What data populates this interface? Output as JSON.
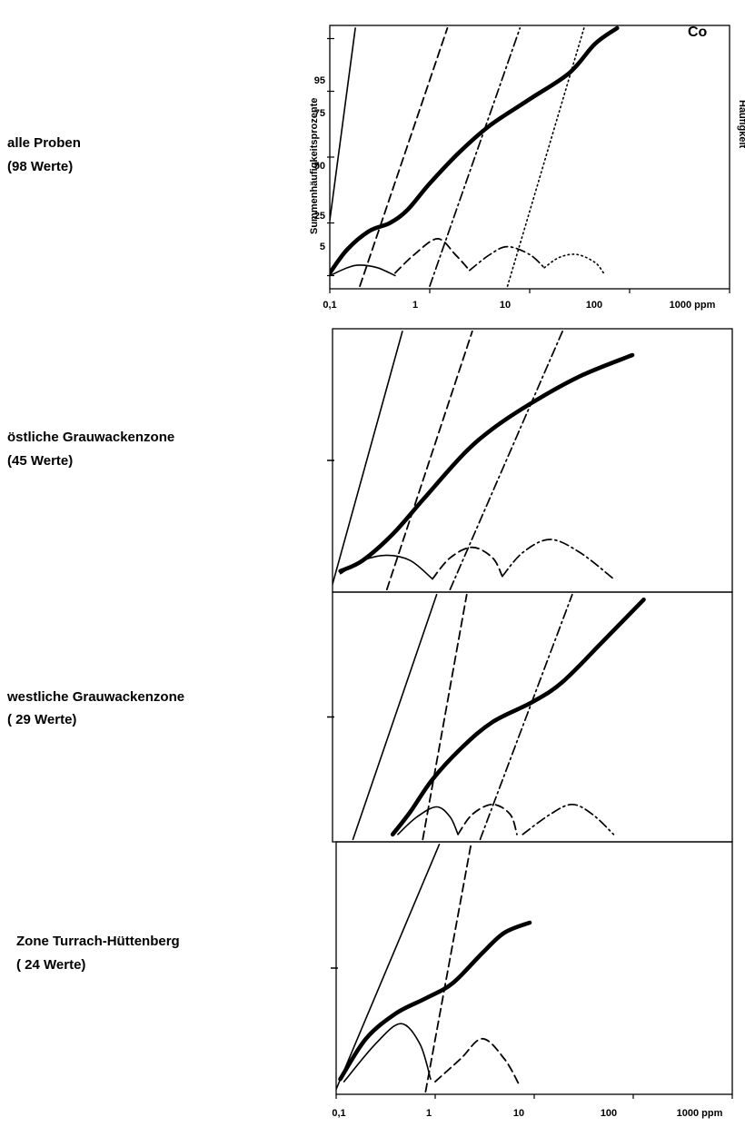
{
  "element": "Co",
  "y_axis_label": "Summenhäufigkeitsprozente",
  "y2_axis_label": "Häufigkeit",
  "x_axis": {
    "ticks": [
      "0,1",
      "1",
      "10",
      "100",
      "1000 ppm"
    ],
    "scale": "log",
    "range_ppm": [
      0.1,
      1000
    ]
  },
  "y_axis": {
    "ticks": [
      "5",
      "25",
      "50",
      "75",
      "95"
    ]
  },
  "panels": [
    {
      "label_line1": "alle Proben",
      "label_line2": "(98 Werte)"
    },
    {
      "label_line1": "östliche Grauwackenzone",
      "label_line2": "(45 Werte)"
    },
    {
      "label_line1": "westliche Grauwackenzone",
      "label_line2": "( 29 Werte)"
    },
    {
      "label_line1": "Zone Turrach-Hüttenberg",
      "label_line2": "( 24 Werte)"
    }
  ],
  "chart_data": [
    {
      "type": "line",
      "x_scale": "log",
      "xlim": [
        0.1,
        1000
      ],
      "series": [
        {
          "style": "thick",
          "x": [
            0.1,
            0.15,
            0.25,
            0.4,
            0.6,
            1,
            2,
            4,
            10,
            25,
            45,
            75
          ],
          "y": [
            6,
            15,
            22,
            25,
            30,
            40,
            52,
            62,
            72,
            82,
            93,
            99
          ]
        },
        {
          "style": "solid",
          "x": [
            0.1,
            0.18
          ],
          "y": [
            26,
            99
          ]
        },
        {
          "style": "dashed",
          "x": [
            0.2,
            1.5
          ],
          "y": [
            1,
            99
          ]
        },
        {
          "style": "dash-dot",
          "x": [
            1,
            8
          ],
          "y": [
            1,
            99
          ]
        },
        {
          "style": "dotted",
          "x": [
            6,
            35
          ],
          "y": [
            1,
            99
          ]
        },
        {
          "style": "solid",
          "x": [
            0.1,
            0.15,
            0.2,
            0.3,
            0.45
          ],
          "y": [
            5,
            8,
            9,
            8,
            5
          ]
        },
        {
          "style": "dashed",
          "x": [
            0.45,
            0.7,
            1.2,
            1.8,
            2.5
          ],
          "y": [
            6,
            13,
            19,
            13,
            7
          ]
        },
        {
          "style": "dash-dot",
          "x": [
            2.5,
            4,
            6,
            10,
            14
          ],
          "y": [
            7,
            13,
            16,
            13,
            8
          ]
        },
        {
          "style": "dotted",
          "x": [
            14,
            20,
            30,
            45,
            55
          ],
          "y": [
            8,
            12,
            13,
            10,
            6
          ]
        }
      ]
    },
    {
      "type": "line",
      "x_scale": "log",
      "xlim": [
        0.1,
        1000
      ],
      "series": [
        {
          "style": "thick",
          "x": [
            0.12,
            0.2,
            0.4,
            0.8,
            2,
            4,
            10,
            30,
            100
          ],
          "y": [
            8,
            12,
            22,
            35,
            52,
            62,
            72,
            82,
            90
          ]
        },
        {
          "style": "solid",
          "x": [
            0.1,
            0.5
          ],
          "y": [
            3,
            99
          ]
        },
        {
          "style": "dashed",
          "x": [
            0.35,
            2.5
          ],
          "y": [
            1,
            99
          ]
        },
        {
          "style": "dash-dot",
          "x": [
            1.5,
            20
          ],
          "y": [
            1,
            99
          ]
        },
        {
          "style": "solid",
          "x": [
            0.12,
            0.2,
            0.35,
            0.6,
            1
          ],
          "y": [
            7,
            12,
            14,
            12,
            5
          ]
        },
        {
          "style": "dashed",
          "x": [
            1,
            1.5,
            2.5,
            4,
            5
          ],
          "y": [
            5,
            13,
            17,
            13,
            6
          ]
        },
        {
          "style": "dash-dot",
          "x": [
            5,
            8,
            15,
            30,
            65
          ],
          "y": [
            6,
            15,
            20,
            15,
            5
          ]
        }
      ]
    },
    {
      "type": "line",
      "x_scale": "log",
      "xlim": [
        0.1,
        1000
      ],
      "series": [
        {
          "style": "thick",
          "x": [
            0.4,
            0.6,
            1,
            2,
            4,
            10,
            20,
            50,
            130
          ],
          "y": [
            3,
            12,
            25,
            38,
            48,
            56,
            64,
            80,
            97
          ]
        },
        {
          "style": "solid",
          "x": [
            0.16,
            1.1
          ],
          "y": [
            1,
            99
          ]
        },
        {
          "style": "dashed",
          "x": [
            0.8,
            2.2
          ],
          "y": [
            1,
            99
          ]
        },
        {
          "style": "dash-dot",
          "x": [
            3,
            25
          ],
          "y": [
            1,
            99
          ]
        },
        {
          "style": "solid",
          "x": [
            0.45,
            0.7,
            1.1,
            1.5,
            1.8
          ],
          "y": [
            3,
            10,
            14,
            10,
            3
          ]
        },
        {
          "style": "dashed",
          "x": [
            1.8,
            2.5,
            4,
            6,
            7
          ],
          "y": [
            3,
            11,
            15,
            11,
            3
          ]
        },
        {
          "style": "dash-dot",
          "x": [
            8,
            15,
            25,
            40,
            65
          ],
          "y": [
            3,
            11,
            15,
            11,
            3
          ]
        }
      ]
    },
    {
      "type": "line",
      "x_scale": "log",
      "xlim": [
        0.1,
        1000
      ],
      "series": [
        {
          "style": "thick",
          "x": [
            0.11,
            0.2,
            0.4,
            0.8,
            1.5,
            3,
            5,
            9
          ],
          "y": [
            6,
            22,
            32,
            38,
            44,
            56,
            64,
            68
          ]
        },
        {
          "style": "solid",
          "x": [
            0.1,
            1.1
          ],
          "y": [
            2,
            99
          ]
        },
        {
          "style": "dashed",
          "x": [
            0.8,
            2.3
          ],
          "y": [
            1,
            99
          ]
        },
        {
          "style": "solid",
          "x": [
            0.12,
            0.25,
            0.45,
            0.7,
            0.9
          ],
          "y": [
            5,
            20,
            28,
            20,
            6
          ]
        },
        {
          "style": "dashed",
          "x": [
            1,
            1.8,
            3,
            5,
            7
          ],
          "y": [
            5,
            14,
            22,
            14,
            4
          ]
        }
      ]
    }
  ]
}
